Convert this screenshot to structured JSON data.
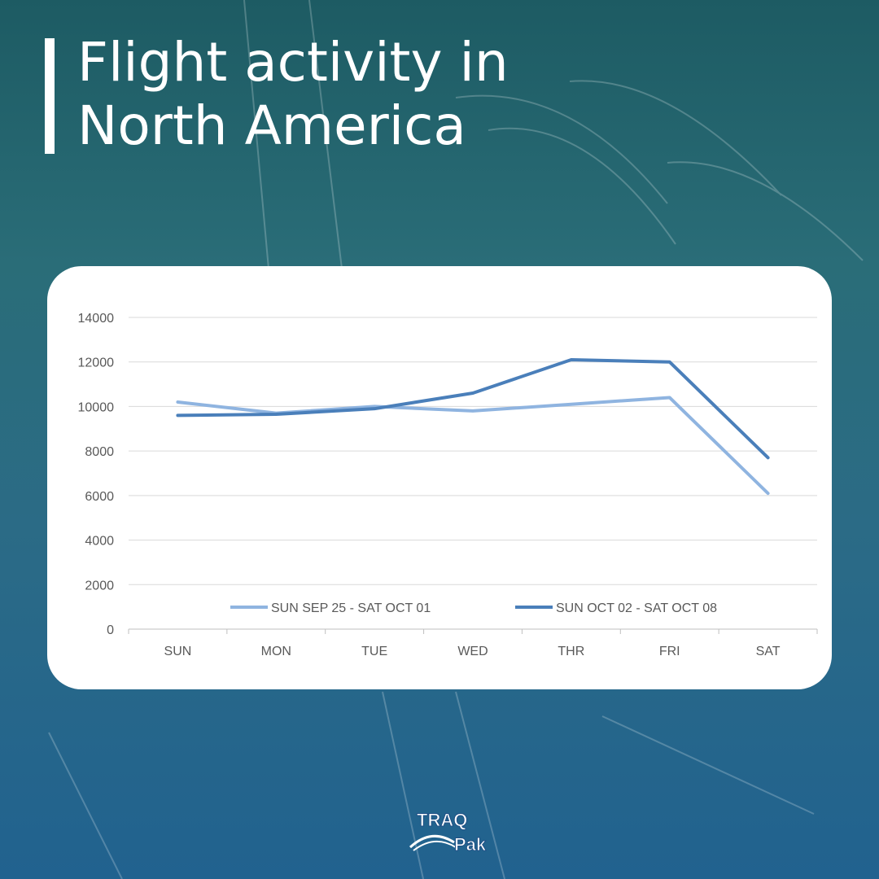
{
  "header": {
    "title_line1": "Flight activity in",
    "title_line2": "North America"
  },
  "brand": {
    "name_top": "TRAQ",
    "name_bottom": "Pak"
  },
  "colors": {
    "series1": "#8fb4e0",
    "series2": "#4a7fba",
    "grid": "#d9d9d9"
  },
  "chart_data": {
    "type": "line",
    "title": "",
    "xlabel": "",
    "ylabel": "",
    "categories": [
      "SUN",
      "MON",
      "TUE",
      "WED",
      "THR",
      "FRI",
      "SAT"
    ],
    "ylim": [
      0,
      14000
    ],
    "yticks": [
      "0",
      "2000",
      "4000",
      "6000",
      "8000",
      "10000",
      "12000",
      "14000"
    ],
    "grid": true,
    "legend_position": "bottom-inside",
    "series": [
      {
        "name": "SUN SEP 25 - SAT OCT 01",
        "values": [
          10200,
          9700,
          10000,
          9800,
          10100,
          10400,
          6100
        ]
      },
      {
        "name": "SUN OCT 02 - SAT OCT 08",
        "values": [
          9600,
          9650,
          9900,
          10600,
          12100,
          12000,
          7700
        ]
      }
    ]
  }
}
